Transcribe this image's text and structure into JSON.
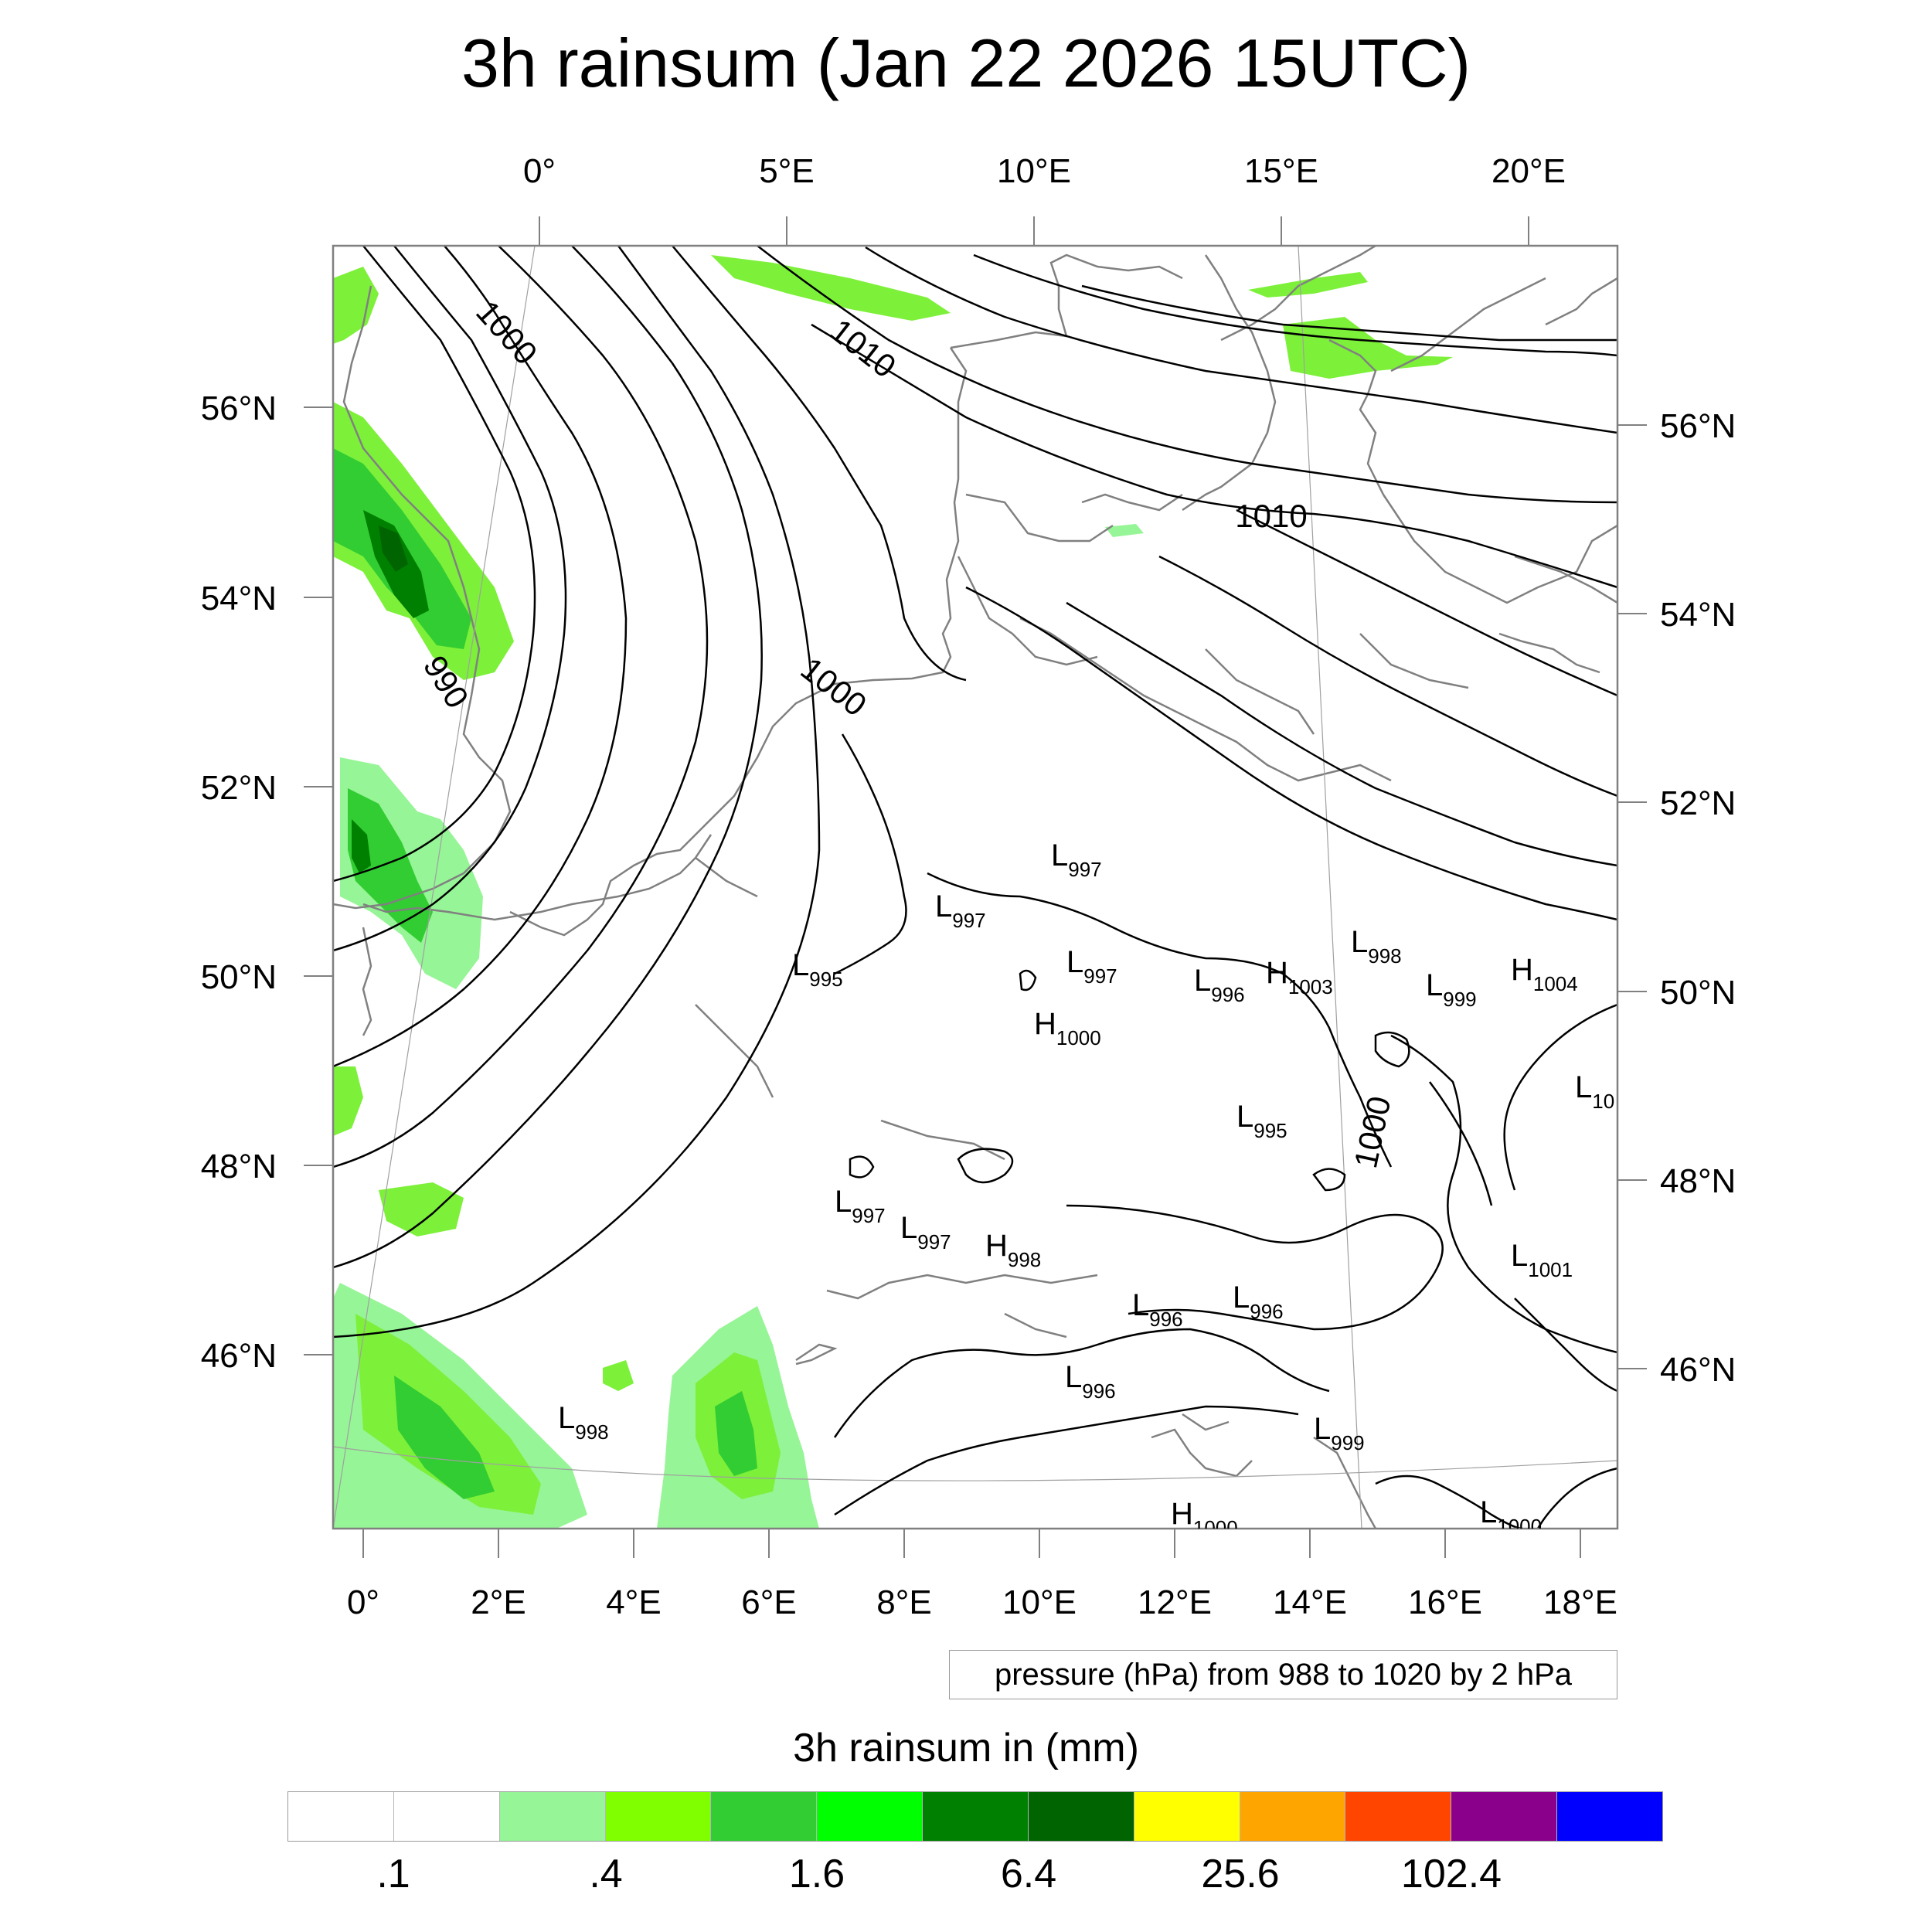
{
  "title": "3h rainsum (Jan 22 2026 15UTC)",
  "axes": {
    "top_lon_labels": [
      "0°",
      "5°E",
      "10°E",
      "15°E",
      "20°E"
    ],
    "bottom_lon_labels": [
      "0°",
      "2°E",
      "4°E",
      "6°E",
      "8°E",
      "10°E",
      "12°E",
      "14°E",
      "16°E",
      "18°E"
    ],
    "left_lat_labels": [
      "56°N",
      "54°N",
      "52°N",
      "50°N",
      "48°N",
      "46°N"
    ],
    "right_lat_labels": [
      "56°N",
      "54°N",
      "52°N",
      "50°N",
      "48°N",
      "46°N"
    ]
  },
  "contour_info": "pressure (hPa) from 988 to 1020 by 2 hPa",
  "contour_labels": [
    "1000",
    "1010",
    "990",
    "1000",
    "1010",
    "1000"
  ],
  "pressure_centers": [
    {
      "type": "L",
      "value": "997"
    },
    {
      "type": "L",
      "value": "997"
    },
    {
      "type": "L",
      "value": "995"
    },
    {
      "type": "L",
      "value": "997"
    },
    {
      "type": "H",
      "value": "1000"
    },
    {
      "type": "L",
      "value": "996"
    },
    {
      "type": "H",
      "value": "1003"
    },
    {
      "type": "L",
      "value": "998"
    },
    {
      "type": "L",
      "value": "999"
    },
    {
      "type": "H",
      "value": "1004"
    },
    {
      "type": "L",
      "value": "10"
    },
    {
      "type": "L",
      "value": "995"
    },
    {
      "type": "L",
      "value": "997"
    },
    {
      "type": "L",
      "value": "997"
    },
    {
      "type": "H",
      "value": "998"
    },
    {
      "type": "L",
      "value": "1001"
    },
    {
      "type": "L",
      "value": "996"
    },
    {
      "type": "L",
      "value": "996"
    },
    {
      "type": "L",
      "value": "996"
    },
    {
      "type": "L",
      "value": "998"
    },
    {
      "type": "L",
      "value": "999"
    },
    {
      "type": "H",
      "value": "1000"
    },
    {
      "type": "L",
      "value": "1000"
    }
  ],
  "colorbar": {
    "title": "3h rainsum in (mm)",
    "colors": [
      "#ffffff",
      "#ffffff",
      "#96f596",
      "#80ff00",
      "#32cd32",
      "#00ff00",
      "#008000",
      "#006400",
      "#ffff00",
      "#ffa500",
      "#ff4500",
      "#8b008b",
      "#0000ff"
    ],
    "labels": [
      ".1",
      ".4",
      "1.6",
      "6.4",
      "25.6",
      "102.4"
    ]
  }
}
